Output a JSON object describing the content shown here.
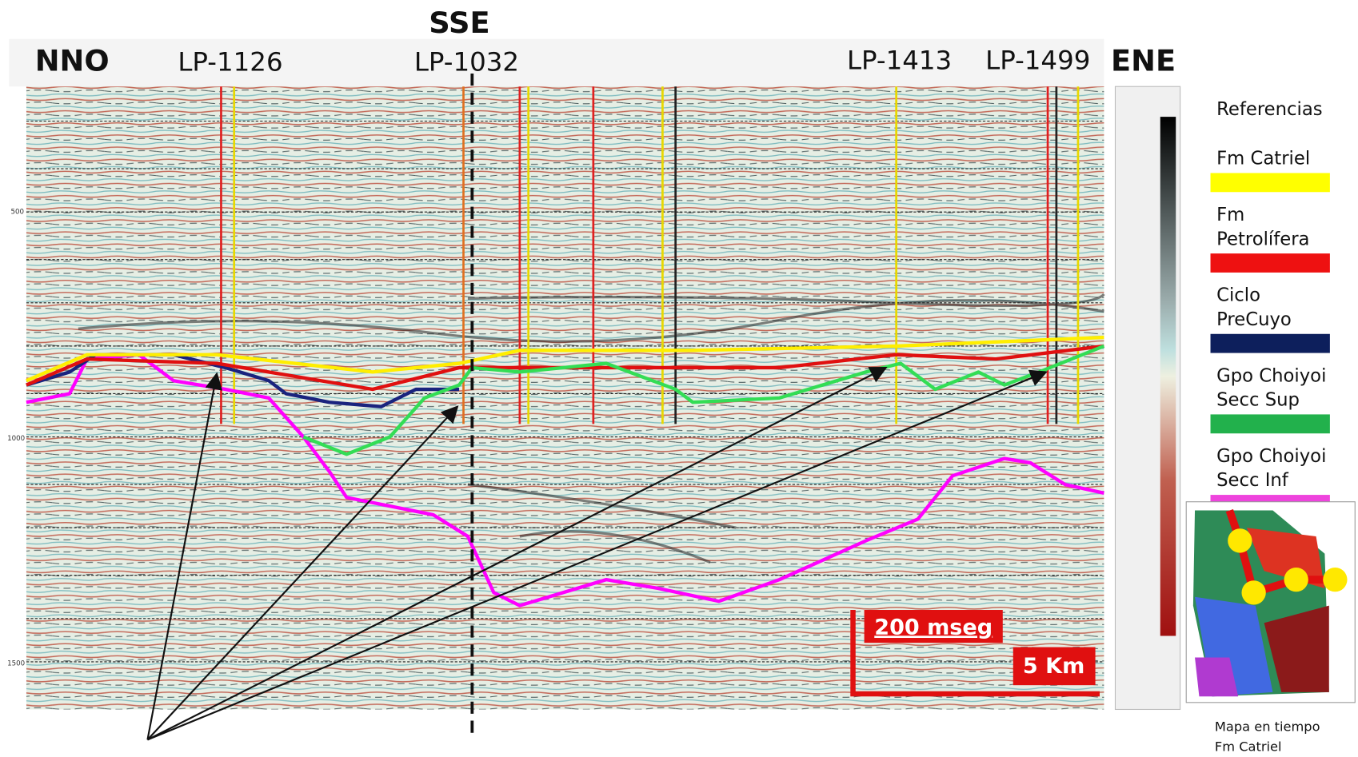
{
  "header": {
    "left": "NNO",
    "center": "SSE",
    "right": "ENE"
  },
  "wells": [
    "LP-1126",
    "LP-1032",
    "LP-1413",
    "LP-1499"
  ],
  "axis": {
    "labels": [
      "500",
      "1000",
      "1500"
    ]
  },
  "legend": {
    "title": "Referencias",
    "items": [
      {
        "lines": [
          "Fm Catriel"
        ],
        "color": "#ffff00"
      },
      {
        "lines": [
          "Fm",
          "Petrolífera"
        ],
        "color": "#ee1111"
      },
      {
        "lines": [
          "Ciclo",
          "PreCuyo"
        ],
        "color": "#0d1f5c"
      },
      {
        "lines": [
          "Gpo Choiyoi",
          "Secc Sup"
        ],
        "color": "#22b14c"
      },
      {
        "lines": [
          "Gpo Choiyoi",
          "Secc Inf"
        ],
        "color": "#ee44dd"
      }
    ]
  },
  "scale": {
    "time": "200 mseg",
    "distance": "5 Km"
  },
  "map": {
    "caption": [
      "Mapa en tiempo",
      "Fm Catriel"
    ]
  }
}
